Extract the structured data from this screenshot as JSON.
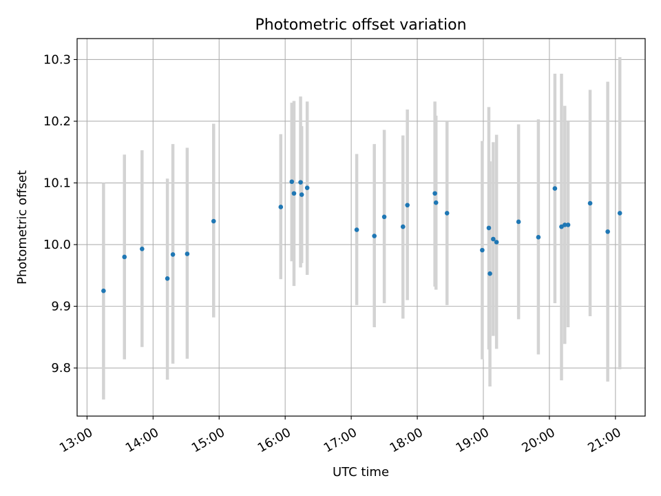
{
  "chart_data": {
    "type": "scatter",
    "title": "Photometric offset variation",
    "xlabel": "UTC time",
    "ylabel": "Photometric offset",
    "x_axis": {
      "kind": "time",
      "range": [
        "12:51",
        "21:27"
      ],
      "ticks": [
        "13:00",
        "14:00",
        "15:00",
        "16:00",
        "17:00",
        "18:00",
        "19:00",
        "20:00",
        "21:00"
      ]
    },
    "y_axis": {
      "range": [
        9.722,
        10.334
      ],
      "ticks": [
        9.8,
        9.9,
        10.0,
        10.1,
        10.2,
        10.3
      ],
      "tick_labels": [
        "9.8",
        "9.9",
        "10.0",
        "10.1",
        "10.2",
        "10.3"
      ]
    },
    "grid": true,
    "legend": "none",
    "colors": {
      "marker": "#1f77b4",
      "errorbar": "#d3d3d3",
      "grid": "#b0b0b0"
    },
    "series": [
      {
        "points": [
          {
            "x": "13:15",
            "y": 9.925,
            "low": 9.749,
            "high": 10.1
          },
          {
            "x": "13:34",
            "y": 9.98,
            "low": 9.814,
            "high": 10.146
          },
          {
            "x": "13:50",
            "y": 9.993,
            "low": 9.834,
            "high": 10.153
          },
          {
            "x": "14:13",
            "y": 9.945,
            "low": 9.781,
            "high": 10.107
          },
          {
            "x": "14:18",
            "y": 9.984,
            "low": 9.807,
            "high": 10.163
          },
          {
            "x": "14:31",
            "y": 9.985,
            "low": 9.815,
            "high": 10.157
          },
          {
            "x": "14:55",
            "y": 10.038,
            "low": 9.882,
            "high": 10.196
          },
          {
            "x": "15:56",
            "y": 10.061,
            "low": 9.944,
            "high": 10.179
          },
          {
            "x": "16:06",
            "y": 10.102,
            "low": 9.973,
            "high": 10.23
          },
          {
            "x": "16:08",
            "y": 10.083,
            "low": 9.933,
            "high": 10.233
          },
          {
            "x": "16:14",
            "y": 10.101,
            "low": 9.963,
            "high": 10.24
          },
          {
            "x": "16:15",
            "y": 10.081,
            "low": 9.97,
            "high": 10.192
          },
          {
            "x": "16:20",
            "y": 10.092,
            "low": 9.951,
            "high": 10.232
          },
          {
            "x": "17:05",
            "y": 10.024,
            "low": 9.902,
            "high": 10.147
          },
          {
            "x": "17:21",
            "y": 10.014,
            "low": 9.866,
            "high": 10.163
          },
          {
            "x": "17:30",
            "y": 10.045,
            "low": 9.905,
            "high": 10.186
          },
          {
            "x": "17:47",
            "y": 10.029,
            "low": 9.88,
            "high": 10.177
          },
          {
            "x": "17:51",
            "y": 10.064,
            "low": 9.91,
            "high": 10.219
          },
          {
            "x": "18:16",
            "y": 10.083,
            "low": 9.932,
            "high": 10.232
          },
          {
            "x": "18:17",
            "y": 10.068,
            "low": 9.927,
            "high": 10.209
          },
          {
            "x": "18:27",
            "y": 10.051,
            "low": 9.902,
            "high": 10.2
          },
          {
            "x": "18:59",
            "y": 9.991,
            "low": 9.814,
            "high": 10.168
          },
          {
            "x": "19:05",
            "y": 10.027,
            "low": 9.83,
            "high": 10.223
          },
          {
            "x": "19:06",
            "y": 9.953,
            "low": 9.77,
            "high": 10.135
          },
          {
            "x": "19:09",
            "y": 10.009,
            "low": 9.852,
            "high": 10.166
          },
          {
            "x": "19:12",
            "y": 10.004,
            "low": 9.831,
            "high": 10.178
          },
          {
            "x": "19:32",
            "y": 10.037,
            "low": 9.879,
            "high": 10.195
          },
          {
            "x": "19:50",
            "y": 10.012,
            "low": 9.822,
            "high": 10.203
          },
          {
            "x": "20:05",
            "y": 10.091,
            "low": 9.905,
            "high": 10.277
          },
          {
            "x": "20:11",
            "y": 10.029,
            "low": 9.78,
            "high": 10.277
          },
          {
            "x": "20:14",
            "y": 10.032,
            "low": 9.839,
            "high": 10.225
          },
          {
            "x": "20:17",
            "y": 10.032,
            "low": 9.866,
            "high": 10.199
          },
          {
            "x": "20:37",
            "y": 10.067,
            "low": 9.884,
            "high": 10.251
          },
          {
            "x": "20:53",
            "y": 10.021,
            "low": 9.778,
            "high": 10.264
          },
          {
            "x": "21:04",
            "y": 10.051,
            "low": 9.798,
            "high": 10.304
          }
        ]
      }
    ]
  }
}
